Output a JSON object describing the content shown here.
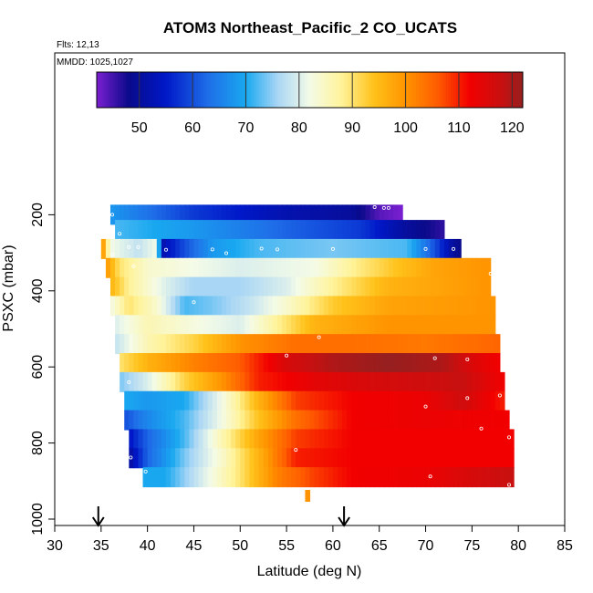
{
  "chart_data": {
    "type": "heatmap",
    "title": "ATOM3 Northeast_Pacific_2 CO_UCATS",
    "flights_label": "Flts: 12,13",
    "mmdd_label": "MMDD: 1025,1027",
    "xlabel": "Latitude (deg N)",
    "ylabel": "PSXC (mbar)",
    "xlim": [
      30,
      85
    ],
    "ylim": [
      1000,
      100
    ],
    "x_ticks": [
      30,
      35,
      40,
      45,
      50,
      55,
      60,
      65,
      70,
      75,
      80,
      85
    ],
    "y_ticks": [
      200,
      400,
      600,
      800,
      1000
    ],
    "colorbar": {
      "range": [
        42,
        122
      ],
      "ticks": [
        50,
        60,
        70,
        80,
        90,
        100,
        110,
        120
      ],
      "stops": [
        {
          "v": 42,
          "c": "#7b1fd1"
        },
        {
          "v": 48,
          "c": "#0a0a8a"
        },
        {
          "v": 55,
          "c": "#0018c8"
        },
        {
          "v": 63,
          "c": "#1f6fe8"
        },
        {
          "v": 70,
          "c": "#19a8f0"
        },
        {
          "v": 76,
          "c": "#a9d6f5"
        },
        {
          "v": 82,
          "c": "#f4fbe7"
        },
        {
          "v": 88,
          "c": "#fff39a"
        },
        {
          "v": 94,
          "c": "#ffc21a"
        },
        {
          "v": 100,
          "c": "#ff9400"
        },
        {
          "v": 106,
          "c": "#ff5c00"
        },
        {
          "v": 112,
          "c": "#f20000"
        },
        {
          "v": 118,
          "c": "#c81010"
        },
        {
          "v": 122,
          "c": "#961f1f"
        }
      ]
    },
    "flight_arrows_lat": [
      34.7,
      61.2
    ],
    "bands": [
      {
        "p": 200,
        "lat0": 36.0,
        "lat1": 67.5,
        "knots": [
          [
            36,
            68
          ],
          [
            45,
            58
          ],
          [
            55,
            52
          ],
          [
            62,
            50
          ],
          [
            65,
            44
          ],
          [
            67.5,
            42
          ]
        ]
      },
      {
        "p": 240,
        "lat0": 36.5,
        "lat1": 72.0,
        "knots": [
          [
            36.5,
            72
          ],
          [
            45,
            68
          ],
          [
            55,
            62
          ],
          [
            63,
            58
          ],
          [
            68,
            50
          ],
          [
            72,
            46
          ]
        ]
      },
      {
        "p": 290,
        "lat0": 35.0,
        "lat1": 73.8,
        "knots": [
          [
            35,
            103
          ],
          [
            36,
            82
          ],
          [
            39,
            78
          ],
          [
            41,
            82
          ],
          [
            41.6,
            52
          ],
          [
            44,
            60
          ],
          [
            47,
            68
          ],
          [
            52,
            72
          ],
          [
            60,
            74
          ],
          [
            68,
            72
          ],
          [
            71,
            60
          ],
          [
            73,
            50
          ],
          [
            73.8,
            48
          ]
        ]
      },
      {
        "p": 340,
        "lat0": 35.5,
        "lat1": 77.0,
        "knots": [
          [
            35.5,
            100
          ],
          [
            37,
            90
          ],
          [
            40,
            84
          ],
          [
            50,
            80
          ],
          [
            58,
            82
          ],
          [
            62,
            88
          ],
          [
            67,
            94
          ],
          [
            71,
            98
          ],
          [
            77,
            100
          ]
        ]
      },
      {
        "p": 390,
        "lat0": 36.0,
        "lat1": 77.0,
        "knots": [
          [
            36,
            96
          ],
          [
            38,
            88
          ],
          [
            42,
            80
          ],
          [
            45,
            76
          ],
          [
            50,
            76
          ],
          [
            55,
            80
          ],
          [
            60,
            88
          ],
          [
            66,
            96
          ],
          [
            77,
            100
          ]
        ]
      },
      {
        "p": 440,
        "lat0": 36.0,
        "lat1": 77.5,
        "knots": [
          [
            36,
            82
          ],
          [
            38,
            90
          ],
          [
            41,
            84
          ],
          [
            44,
            72
          ],
          [
            47,
            74
          ],
          [
            51,
            78
          ],
          [
            55,
            84
          ],
          [
            60,
            93
          ],
          [
            66,
            98
          ],
          [
            77.5,
            100
          ]
        ]
      },
      {
        "p": 490,
        "lat0": 36.5,
        "lat1": 77.5,
        "knots": [
          [
            36.5,
            80
          ],
          [
            40,
            86
          ],
          [
            46,
            82
          ],
          [
            50,
            80
          ],
          [
            54,
            88
          ],
          [
            58,
            96
          ],
          [
            66,
            100
          ],
          [
            77.5,
            100
          ]
        ]
      },
      {
        "p": 540,
        "lat0": 36.5,
        "lat1": 78.0,
        "knots": [
          [
            36.5,
            78
          ],
          [
            40,
            86
          ],
          [
            45,
            92
          ],
          [
            50,
            100
          ],
          [
            56,
            104
          ],
          [
            62,
            104
          ],
          [
            70,
            103
          ],
          [
            78,
            105
          ]
        ]
      },
      {
        "p": 590,
        "lat0": 37.0,
        "lat1": 78.0,
        "knots": [
          [
            37,
            90
          ],
          [
            40,
            96
          ],
          [
            45,
            102
          ],
          [
            50,
            106
          ],
          [
            55,
            116
          ],
          [
            60,
            120
          ],
          [
            66,
            122
          ],
          [
            72,
            120
          ],
          [
            76,
            114
          ],
          [
            78,
            112
          ]
        ]
      },
      {
        "p": 640,
        "lat0": 37.0,
        "lat1": 78.5,
        "knots": [
          [
            37,
            74
          ],
          [
            40,
            80
          ],
          [
            44,
            92
          ],
          [
            48,
            100
          ],
          [
            52,
            110
          ],
          [
            58,
            114
          ],
          [
            64,
            116
          ],
          [
            70,
            117
          ],
          [
            74,
            118
          ],
          [
            78.5,
            112
          ]
        ]
      },
      {
        "p": 690,
        "lat0": 37.5,
        "lat1": 78.5,
        "knots": [
          [
            37.5,
            70
          ],
          [
            40,
            68
          ],
          [
            44,
            70
          ],
          [
            48,
            82
          ],
          [
            52,
            96
          ],
          [
            56,
            108
          ],
          [
            62,
            112
          ],
          [
            70,
            113
          ],
          [
            74,
            117
          ],
          [
            78.5,
            110
          ]
        ]
      },
      {
        "p": 740,
        "lat0": 37.5,
        "lat1": 79.0,
        "knots": [
          [
            37.5,
            60
          ],
          [
            40,
            66
          ],
          [
            44,
            72
          ],
          [
            48,
            82
          ],
          [
            52,
            94
          ],
          [
            56,
            104
          ],
          [
            62,
            112
          ],
          [
            70,
            113
          ],
          [
            79,
            112
          ]
        ]
      },
      {
        "p": 790,
        "lat0": 38.0,
        "lat1": 79.5,
        "knots": [
          [
            38,
            54
          ],
          [
            40,
            62
          ],
          [
            44,
            72
          ],
          [
            48,
            86
          ],
          [
            52,
            98
          ],
          [
            56,
            108
          ],
          [
            62,
            112
          ],
          [
            70,
            112
          ],
          [
            79.5,
            112
          ]
        ]
      },
      {
        "p": 840,
        "lat0": 38.0,
        "lat1": 79.5,
        "knots": [
          [
            38,
            50
          ],
          [
            40,
            62
          ],
          [
            44,
            74
          ],
          [
            48,
            84
          ],
          [
            52,
            96
          ],
          [
            56,
            110
          ],
          [
            62,
            112
          ],
          [
            70,
            112
          ],
          [
            79.5,
            112
          ]
        ]
      },
      {
        "p": 890,
        "lat0": 39.5,
        "lat1": 79.5,
        "knots": [
          [
            39.5,
            70
          ],
          [
            42,
            70
          ],
          [
            46,
            80
          ],
          [
            50,
            90
          ],
          [
            54,
            102
          ],
          [
            58,
            108
          ],
          [
            62,
            112
          ],
          [
            70,
            113
          ],
          [
            75,
            116
          ],
          [
            79.5,
            118
          ]
        ]
      },
      {
        "p": 940,
        "lat0": 57.0,
        "lat1": 57.5,
        "knots": [
          [
            57,
            100
          ],
          [
            57.5,
            100
          ]
        ]
      }
    ],
    "points": [
      [
        36.2,
        200
      ],
      [
        37.0,
        250
      ],
      [
        64.5,
        180
      ],
      [
        65.5,
        182
      ],
      [
        66.0,
        182
      ],
      [
        36.2,
        305
      ],
      [
        38.0,
        285
      ],
      [
        39.0,
        285
      ],
      [
        42.0,
        292
      ],
      [
        47.0,
        291
      ],
      [
        48.5,
        301
      ],
      [
        52.3,
        289
      ],
      [
        54.0,
        291
      ],
      [
        60.0,
        290
      ],
      [
        70.0,
        290
      ],
      [
        73.0,
        290
      ],
      [
        38.5,
        335
      ],
      [
        45.0,
        430
      ],
      [
        77.0,
        355
      ],
      [
        58.5,
        522
      ],
      [
        55.0,
        570
      ],
      [
        71.0,
        577
      ],
      [
        74.5,
        580
      ],
      [
        38.0,
        640
      ],
      [
        70.0,
        704
      ],
      [
        74.5,
        682
      ],
      [
        78.0,
        675
      ],
      [
        76.0,
        762
      ],
      [
        79.0,
        785
      ],
      [
        38.2,
        838
      ],
      [
        39.8,
        875
      ],
      [
        56.0,
        818
      ],
      [
        70.5,
        888
      ],
      [
        79.0,
        910
      ]
    ]
  }
}
